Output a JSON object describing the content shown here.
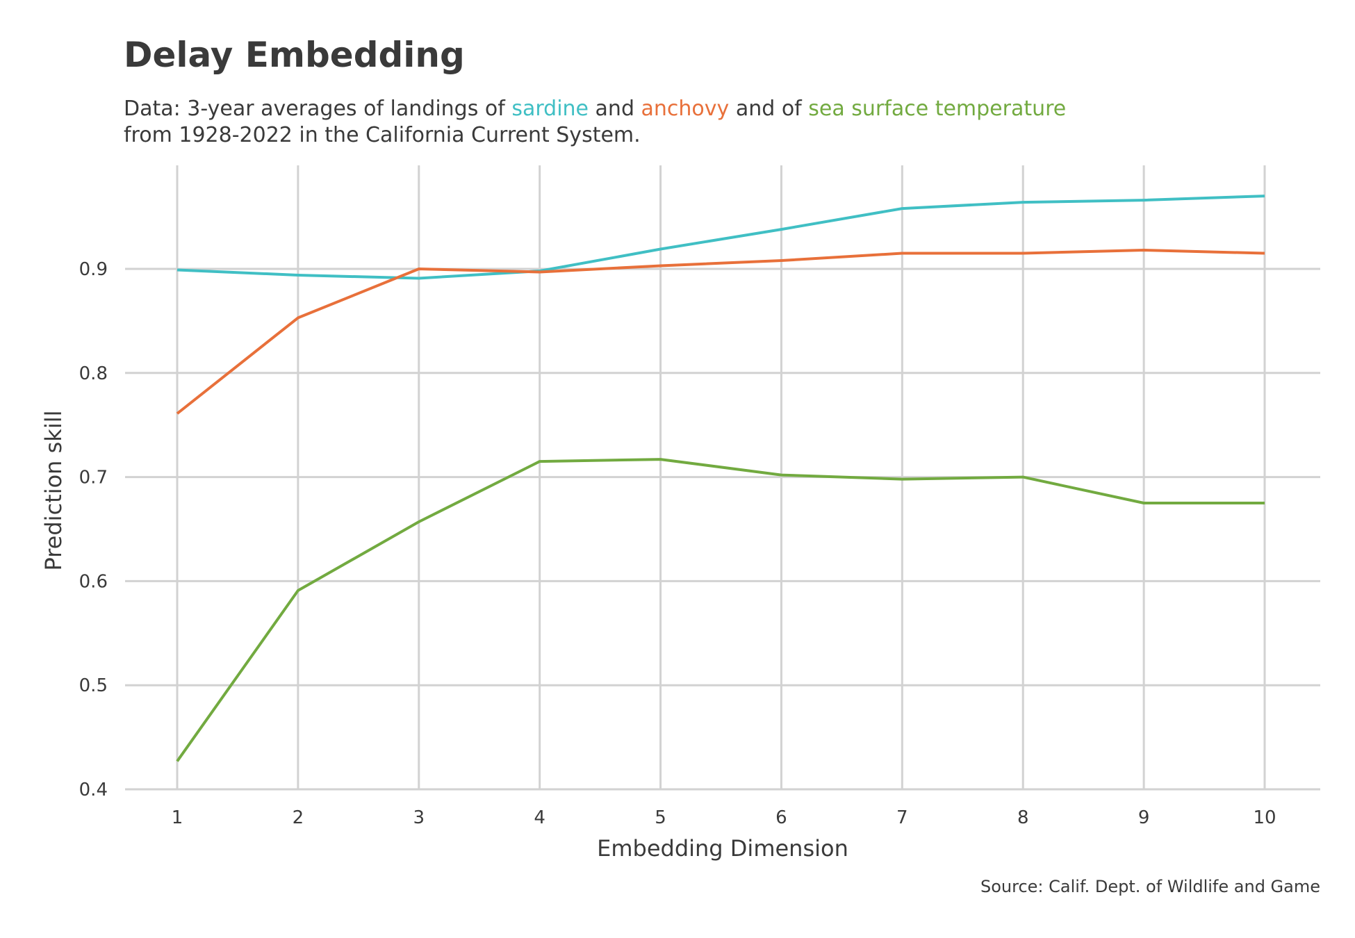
{
  "title": "Delay Embedding",
  "subtitle": {
    "pre": "Data: 3-year averages of landings of ",
    "s1": "sardine",
    "mid1": " and ",
    "s2": "anchovy",
    "mid2": " and of ",
    "s3": "sea surface temperature",
    "line2": "from 1928-2022 in the California Current System."
  },
  "caption": "Source: Calif. Dept. of Wildlife and Game",
  "colors": {
    "sardine": "#40bfc4",
    "anchovy": "#e8703a",
    "sst": "#72aa40",
    "grid": "#d2d2d2",
    "text": "#3a3a3a"
  },
  "chart_data": {
    "type": "line",
    "title": "Delay Embedding",
    "xlabel": "Embedding Dimension",
    "ylabel": "Prediction skill",
    "x": [
      1,
      2,
      3,
      4,
      5,
      6,
      7,
      8,
      9,
      10
    ],
    "xlim": [
      1,
      10
    ],
    "ylim": [
      0.4,
      1.0
    ],
    "xticks": [
      "1",
      "2",
      "3",
      "4",
      "5",
      "6",
      "7",
      "8",
      "9",
      "10"
    ],
    "yticks": [
      "0.4",
      "0.5",
      "0.6",
      "0.7",
      "0.8",
      "0.9"
    ],
    "grid": true,
    "legend": "none",
    "series": [
      {
        "name": "sardine",
        "color": "#40bfc4",
        "values": [
          0.899,
          0.894,
          0.891,
          0.898,
          0.919,
          0.938,
          0.958,
          0.964,
          0.966,
          0.97
        ]
      },
      {
        "name": "anchovy",
        "color": "#e8703a",
        "values": [
          0.761,
          0.853,
          0.9,
          0.897,
          0.903,
          0.908,
          0.915,
          0.915,
          0.918,
          0.915
        ]
      },
      {
        "name": "sea surface temperature",
        "color": "#72aa40",
        "values": [
          0.427,
          0.591,
          0.657,
          0.715,
          0.717,
          0.702,
          0.698,
          0.7,
          0.675,
          0.675
        ]
      }
    ]
  }
}
